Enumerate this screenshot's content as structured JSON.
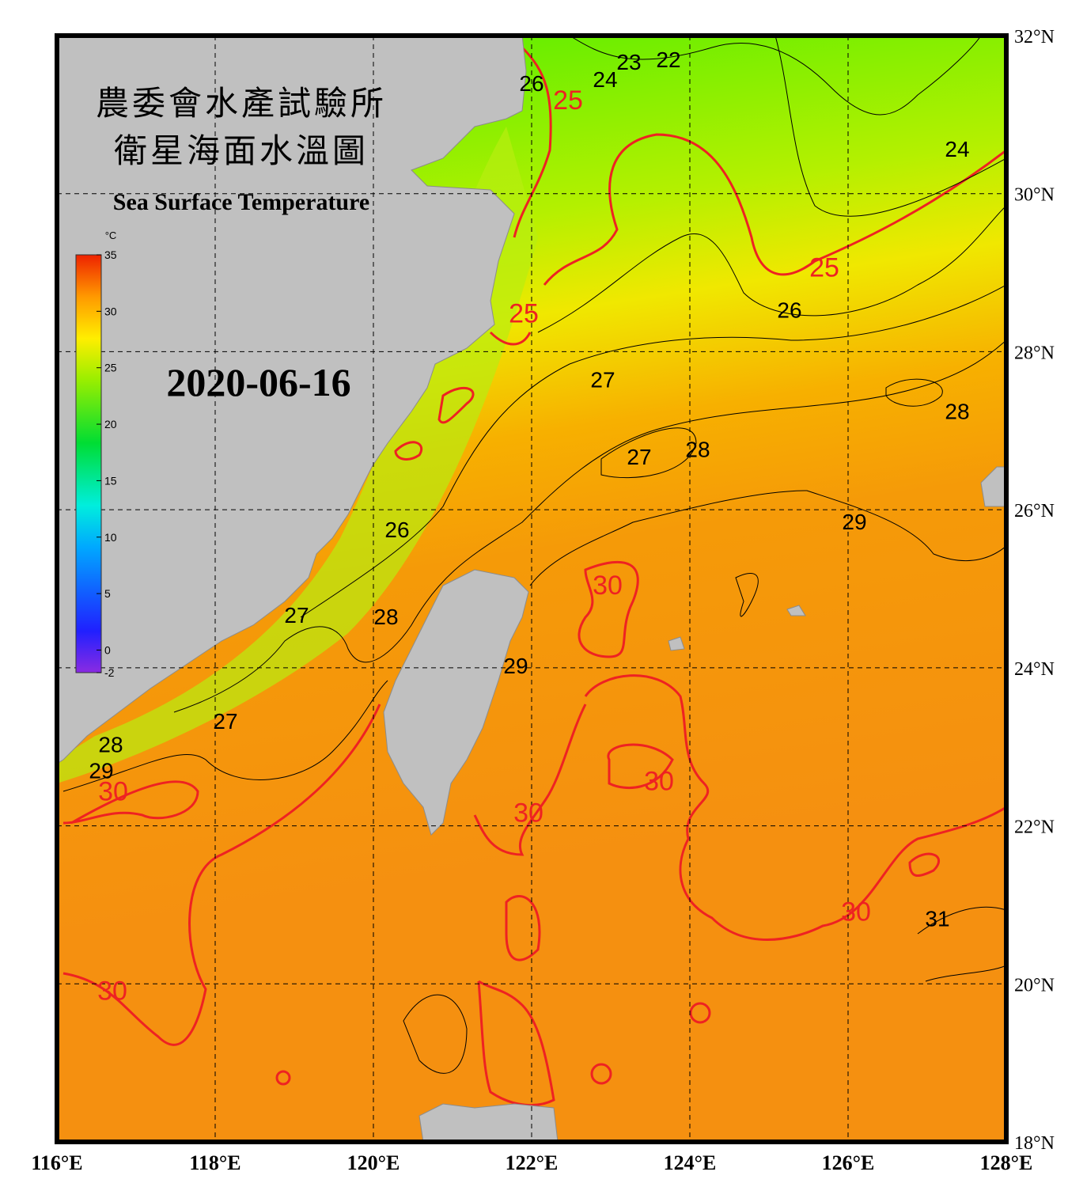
{
  "title": "農委會水產試驗所",
  "subtitle": "衛星海面水溫圖",
  "title_en": "Sea Surface Temperature",
  "date": "2020-06-16",
  "colorbar": {
    "unit": "°C",
    "range": [
      -2,
      35
    ],
    "ticks": [
      -2,
      0,
      5,
      10,
      15,
      20,
      25,
      30,
      35
    ]
  },
  "map": {
    "lonlim": [
      116,
      128
    ],
    "latlim": [
      18,
      32
    ],
    "lon_ticks": [
      {
        "value": 116,
        "label": "116°E"
      },
      {
        "value": 118,
        "label": "118°E"
      },
      {
        "value": 120,
        "label": "120°E"
      },
      {
        "value": 122,
        "label": "122°E"
      },
      {
        "value": 124,
        "label": "124°E"
      },
      {
        "value": 126,
        "label": "126°E"
      },
      {
        "value": 128,
        "label": "128°E"
      }
    ],
    "lat_ticks": [
      {
        "value": 18,
        "label": "18°N"
      },
      {
        "value": 20,
        "label": "20°N"
      },
      {
        "value": 22,
        "label": "22°N"
      },
      {
        "value": 24,
        "label": "24°N"
      },
      {
        "value": 26,
        "label": "26°N"
      },
      {
        "value": 28,
        "label": "28°N"
      },
      {
        "value": 30,
        "label": "30°N"
      },
      {
        "value": 32,
        "label": "32°N"
      }
    ],
    "grid": true
  },
  "contours": {
    "highlight_levels": [
      25,
      30
    ],
    "highlight_color": "#ee2222",
    "color": "#000000",
    "labels": [
      {
        "value": 22,
        "lon": 123.73,
        "lat": 31.7
      },
      {
        "value": 23,
        "lon": 123.23,
        "lat": 31.67
      },
      {
        "value": 24,
        "lon": 122.93,
        "lat": 31.45
      },
      {
        "value": 26,
        "lon": 122.0,
        "lat": 31.4
      },
      {
        "value": 25,
        "lon": 122.46,
        "lat": 31.17
      },
      {
        "value": 24,
        "lon": 127.38,
        "lat": 30.57
      },
      {
        "value": 25,
        "lon": 125.7,
        "lat": 29.05
      },
      {
        "value": 26,
        "lon": 125.26,
        "lat": 28.53
      },
      {
        "value": 25,
        "lon": 121.9,
        "lat": 28.47
      },
      {
        "value": 27,
        "lon": 122.9,
        "lat": 27.65
      },
      {
        "value": 28,
        "lon": 127.38,
        "lat": 27.25
      },
      {
        "value": 27,
        "lon": 123.36,
        "lat": 26.67
      },
      {
        "value": 28,
        "lon": 124.1,
        "lat": 26.77
      },
      {
        "value": 29,
        "lon": 126.08,
        "lat": 25.85
      },
      {
        "value": 26,
        "lon": 120.3,
        "lat": 25.75
      },
      {
        "value": 30,
        "lon": 122.96,
        "lat": 25.03
      },
      {
        "value": 27,
        "lon": 119.03,
        "lat": 24.67
      },
      {
        "value": 28,
        "lon": 120.16,
        "lat": 24.65
      },
      {
        "value": 29,
        "lon": 121.8,
        "lat": 24.03
      },
      {
        "value": 27,
        "lon": 118.13,
        "lat": 23.33
      },
      {
        "value": 28,
        "lon": 116.68,
        "lat": 23.03
      },
      {
        "value": 29,
        "lon": 116.56,
        "lat": 22.7
      },
      {
        "value": 30,
        "lon": 116.71,
        "lat": 22.42
      },
      {
        "value": 30,
        "lon": 123.61,
        "lat": 22.55
      },
      {
        "value": 30,
        "lon": 121.96,
        "lat": 22.15
      },
      {
        "value": 30,
        "lon": 126.1,
        "lat": 20.9
      },
      {
        "value": 31,
        "lon": 127.13,
        "lat": 20.83
      },
      {
        "value": 30,
        "lon": 116.7,
        "lat": 19.9
      }
    ]
  }
}
